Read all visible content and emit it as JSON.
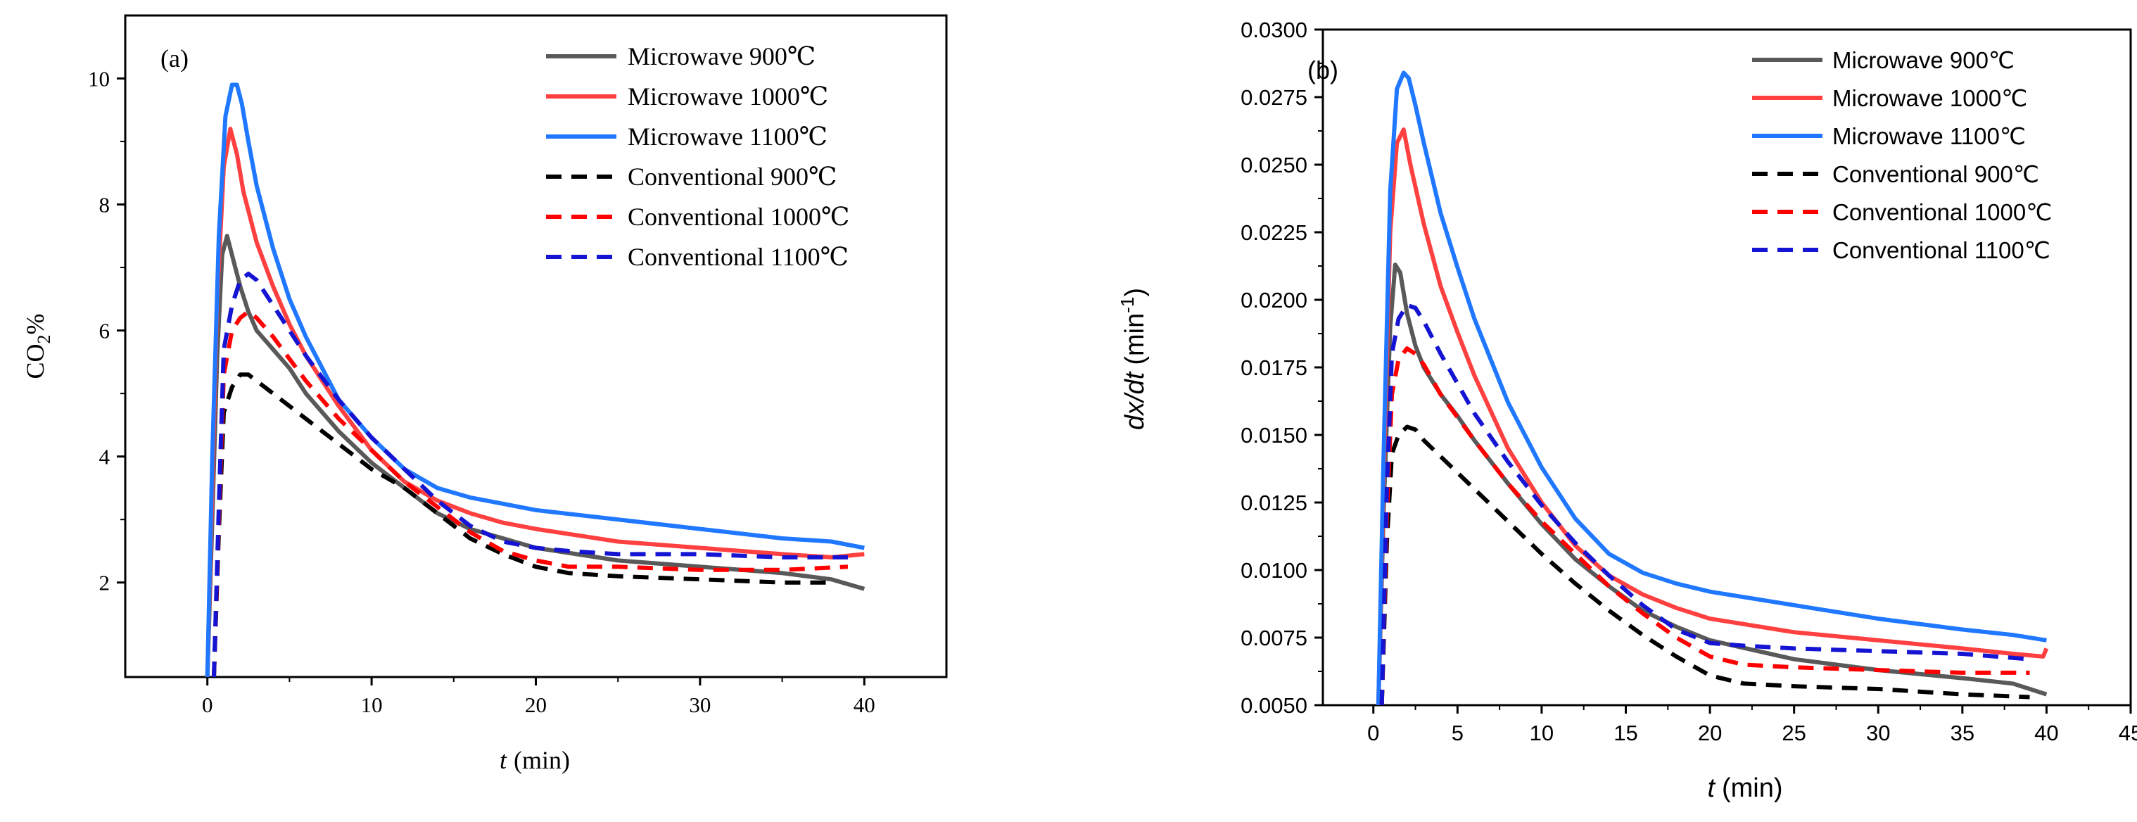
{
  "chart_data": [
    {
      "type": "line",
      "panel_label": "(a)",
      "ylabel_main": "CO",
      "ylabel_sub": "2",
      "ylabel_suffix": "%",
      "xlabel_var": "t",
      "xlabel_unit": "(min)",
      "xlim": [
        -5,
        45
      ],
      "ylim": [
        0.5,
        11
      ],
      "xticks": [
        0,
        10,
        20,
        30,
        40
      ],
      "yticks": [
        2,
        4,
        6,
        8,
        10
      ],
      "tick_labels_x": [
        "0",
        "10",
        "20",
        "30",
        "40"
      ],
      "tick_labels_y": [
        "2",
        "4",
        "6",
        "8",
        "10"
      ],
      "legend_position": "top-right",
      "series": [
        {
          "name": "Microwave 900℃",
          "style": "solid",
          "color": "#595959",
          "x": [
            0,
            0.3,
            0.6,
            0.9,
            1.2,
            1.5,
            2,
            2.5,
            3,
            4,
            5,
            6,
            8,
            10,
            12,
            14,
            16,
            18,
            20,
            25,
            30,
            35,
            38,
            40
          ],
          "y": [
            0.5,
            3.0,
            5.6,
            7.2,
            7.5,
            7.2,
            6.7,
            6.3,
            6.0,
            5.7,
            5.4,
            5.0,
            4.4,
            3.9,
            3.5,
            3.1,
            2.85,
            2.7,
            2.55,
            2.35,
            2.25,
            2.15,
            2.05,
            1.9
          ]
        },
        {
          "name": "Microwave 1000℃",
          "style": "solid",
          "color": "#ff4040",
          "x": [
            0,
            0.3,
            0.6,
            1.0,
            1.4,
            1.8,
            2.2,
            3,
            4,
            5,
            6,
            8,
            10,
            12,
            14,
            16,
            18,
            20,
            25,
            30,
            35,
            38,
            40
          ],
          "y": [
            0.5,
            3.5,
            6.5,
            8.6,
            9.2,
            8.8,
            8.2,
            7.4,
            6.7,
            6.1,
            5.6,
            4.8,
            4.1,
            3.6,
            3.3,
            3.1,
            2.95,
            2.85,
            2.65,
            2.55,
            2.45,
            2.4,
            2.45
          ]
        },
        {
          "name": "Microwave 1100℃",
          "style": "solid",
          "color": "#1f78ff",
          "x": [
            0,
            0.3,
            0.7,
            1.1,
            1.5,
            1.8,
            2.1,
            2.5,
            3,
            4,
            5,
            6,
            8,
            10,
            12,
            14,
            16,
            18,
            20,
            25,
            30,
            35,
            38,
            40
          ],
          "y": [
            0.5,
            4.0,
            7.5,
            9.4,
            9.9,
            9.9,
            9.6,
            9.0,
            8.3,
            7.3,
            6.5,
            5.9,
            4.9,
            4.3,
            3.8,
            3.5,
            3.35,
            3.25,
            3.15,
            3.0,
            2.85,
            2.7,
            2.65,
            2.55
          ]
        },
        {
          "name": "Conventional 900℃",
          "style": "dashed",
          "color": "#000000",
          "x": [
            0.4,
            0.7,
            1.0,
            1.5,
            2,
            2.5,
            3,
            4,
            6,
            8,
            10,
            12,
            14,
            16,
            18,
            20,
            22,
            25,
            30,
            35,
            38
          ],
          "y": [
            0.5,
            2.8,
            4.7,
            5.1,
            5.3,
            5.3,
            5.2,
            5.0,
            4.6,
            4.2,
            3.8,
            3.5,
            3.1,
            2.7,
            2.45,
            2.25,
            2.15,
            2.1,
            2.05,
            2.0,
            2.0
          ]
        },
        {
          "name": "Conventional 1000℃",
          "style": "dashed",
          "color": "#ff0000",
          "x": [
            0.4,
            0.7,
            1.0,
            1.5,
            2,
            2.5,
            3,
            4,
            6,
            8,
            10,
            12,
            14,
            16,
            18,
            20,
            22,
            25,
            30,
            35,
            39
          ],
          "y": [
            0.5,
            3.0,
            5.3,
            6.0,
            6.2,
            6.3,
            6.2,
            5.9,
            5.2,
            4.6,
            4.1,
            3.6,
            3.2,
            2.8,
            2.5,
            2.35,
            2.25,
            2.25,
            2.2,
            2.2,
            2.25
          ]
        },
        {
          "name": "Conventional 1100℃",
          "style": "dashed",
          "color": "#1414d2",
          "x": [
            0.4,
            0.7,
            1.0,
            1.5,
            2,
            2.5,
            3,
            4,
            6,
            8,
            10,
            12,
            14,
            16,
            18,
            20,
            22,
            25,
            30,
            35,
            39
          ],
          "y": [
            0.5,
            3.2,
            5.7,
            6.4,
            6.8,
            6.9,
            6.8,
            6.4,
            5.6,
            4.9,
            4.3,
            3.8,
            3.3,
            2.9,
            2.65,
            2.55,
            2.5,
            2.45,
            2.45,
            2.4,
            2.4
          ]
        }
      ]
    },
    {
      "type": "line",
      "panel_label": "(b)",
      "ylabel_var": "dx/dt",
      "ylabel_unit_main": "(min",
      "ylabel_unit_sup": "-1",
      "ylabel_unit_close": ")",
      "xlabel_var": "t",
      "xlabel_unit": "(min)",
      "xlim": [
        -3,
        45
      ],
      "ylim": [
        0.005,
        0.03
      ],
      "xticks": [
        0,
        5,
        10,
        15,
        20,
        25,
        30,
        35,
        40,
        45
      ],
      "yticks": [
        0.005,
        0.0075,
        0.01,
        0.0125,
        0.015,
        0.0175,
        0.02,
        0.0225,
        0.025,
        0.0275,
        0.03
      ],
      "tick_labels_x": [
        "0",
        "5",
        "10",
        "15",
        "20",
        "25",
        "30",
        "35",
        "40",
        "45"
      ],
      "tick_labels_y": [
        "0.0050",
        "0.0075",
        "0.0100",
        "0.0125",
        "0.0150",
        "0.0175",
        "0.0200",
        "0.0225",
        "0.0250",
        "0.0275",
        "0.0300"
      ],
      "legend_position": "top-right",
      "series": [
        {
          "name": "Microwave 900℃",
          "style": "solid",
          "color": "#595959",
          "x": [
            0.3,
            0.6,
            1.0,
            1.3,
            1.6,
            2,
            2.5,
            3,
            4,
            5,
            6,
            8,
            10,
            12,
            14,
            16,
            18,
            20,
            25,
            30,
            35,
            38,
            40
          ],
          "y": [
            0.005,
            0.012,
            0.019,
            0.0213,
            0.021,
            0.0195,
            0.0183,
            0.0175,
            0.0165,
            0.0157,
            0.0148,
            0.0132,
            0.0117,
            0.0104,
            0.0094,
            0.0085,
            0.0079,
            0.0074,
            0.0067,
            0.0063,
            0.006,
            0.0058,
            0.0054
          ]
        },
        {
          "name": "Microwave 1000℃",
          "style": "solid",
          "color": "#ff4040",
          "x": [
            0.3,
            0.6,
            1.0,
            1.4,
            1.8,
            2.2,
            3,
            4,
            5,
            6,
            8,
            10,
            12,
            14,
            16,
            18,
            20,
            25,
            30,
            35,
            38,
            39.8,
            40
          ],
          "y": [
            0.005,
            0.013,
            0.0225,
            0.0258,
            0.0263,
            0.025,
            0.0228,
            0.0205,
            0.0188,
            0.0172,
            0.0145,
            0.0125,
            0.0109,
            0.0098,
            0.0091,
            0.0086,
            0.0082,
            0.0077,
            0.0074,
            0.0071,
            0.0069,
            0.0068,
            0.0071
          ]
        },
        {
          "name": "Microwave 1100℃",
          "style": "solid",
          "color": "#1f78ff",
          "x": [
            0.3,
            0.6,
            1.0,
            1.4,
            1.8,
            2.1,
            2.5,
            3,
            4,
            5,
            6,
            8,
            10,
            12,
            14,
            16,
            18,
            20,
            25,
            30,
            35,
            38,
            40
          ],
          "y": [
            0.005,
            0.014,
            0.024,
            0.0278,
            0.0284,
            0.0282,
            0.0272,
            0.0258,
            0.0232,
            0.0212,
            0.0193,
            0.0162,
            0.0138,
            0.0119,
            0.0106,
            0.0099,
            0.0095,
            0.0092,
            0.0087,
            0.0082,
            0.0078,
            0.0076,
            0.0074
          ]
        },
        {
          "name": "Conventional 900℃",
          "style": "dashed",
          "color": "#000000",
          "x": [
            0.5,
            0.8,
            1.1,
            1.5,
            2,
            2.5,
            3,
            4,
            6,
            8,
            10,
            12,
            14,
            16,
            18,
            20,
            22,
            25,
            30,
            35,
            39
          ],
          "y": [
            0.005,
            0.011,
            0.0143,
            0.015,
            0.0153,
            0.0152,
            0.0148,
            0.0142,
            0.013,
            0.0118,
            0.0106,
            0.0095,
            0.0085,
            0.0076,
            0.0068,
            0.0061,
            0.0058,
            0.0057,
            0.0056,
            0.0054,
            0.0053
          ]
        },
        {
          "name": "Conventional 1000℃",
          "style": "dashed",
          "color": "#ff0000",
          "x": [
            0.5,
            0.8,
            1.1,
            1.5,
            2,
            2.5,
            3,
            4,
            6,
            8,
            10,
            12,
            14,
            16,
            18,
            20,
            22,
            25,
            30,
            35,
            39
          ],
          "y": [
            0.005,
            0.012,
            0.0165,
            0.0178,
            0.0182,
            0.018,
            0.0176,
            0.0165,
            0.0148,
            0.0132,
            0.0118,
            0.0106,
            0.0094,
            0.0084,
            0.0075,
            0.0068,
            0.0065,
            0.0064,
            0.0063,
            0.0062,
            0.0062
          ]
        },
        {
          "name": "Conventional 1100℃",
          "style": "dashed",
          "color": "#1414d2",
          "x": [
            0.5,
            0.8,
            1.1,
            1.5,
            2,
            2.5,
            3,
            4,
            6,
            8,
            10,
            12,
            14,
            16,
            18,
            20,
            22,
            25,
            30,
            35,
            39
          ],
          "y": [
            0.005,
            0.013,
            0.018,
            0.0193,
            0.0198,
            0.0197,
            0.0192,
            0.018,
            0.0158,
            0.014,
            0.0124,
            0.011,
            0.0098,
            0.0087,
            0.0078,
            0.0073,
            0.0072,
            0.0071,
            0.007,
            0.0069,
            0.0067
          ]
        }
      ]
    }
  ]
}
